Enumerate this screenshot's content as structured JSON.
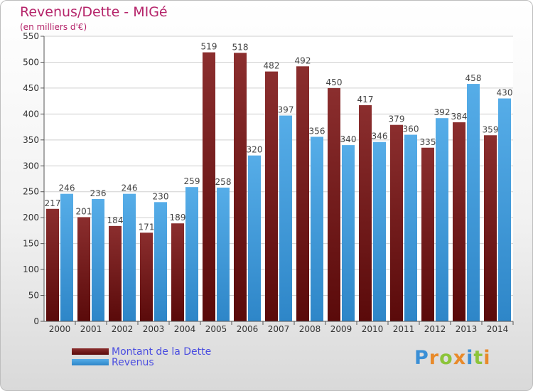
{
  "colors": {
    "debt": "#7a1c1c",
    "revenue": "#4aa3e0",
    "title": "#b5246a",
    "legend_text": "#4a4de0"
  },
  "logo": "Proxiti",
  "chart_data": {
    "type": "bar",
    "title": "Revenus/Dette - MIGé",
    "subtitle": "(en milliers d'€)",
    "categories": [
      "2000",
      "2001",
      "2002",
      "2003",
      "2004",
      "2005",
      "2006",
      "2007",
      "2008",
      "2009",
      "2010",
      "2011",
      "2012",
      "2013",
      "2014"
    ],
    "series": [
      {
        "name": "Montant de la Dette",
        "color": "#7a1c1c",
        "values": [
          217,
          201,
          184,
          171,
          189,
          519,
          518,
          482,
          492,
          450,
          417,
          379,
          335,
          384,
          359
        ]
      },
      {
        "name": "Revenus",
        "color": "#4aa3e0",
        "values": [
          246,
          236,
          246,
          230,
          259,
          258,
          320,
          397,
          356,
          340,
          346,
          360,
          392,
          458,
          430
        ]
      }
    ],
    "y_ticks": [
      "0",
      "50",
      "100",
      "150",
      "200",
      "250",
      "300",
      "350",
      "400",
      "450",
      "500",
      "550"
    ],
    "ylim": [
      0,
      550
    ],
    "grid": true,
    "legend_position": "bottom-left"
  }
}
